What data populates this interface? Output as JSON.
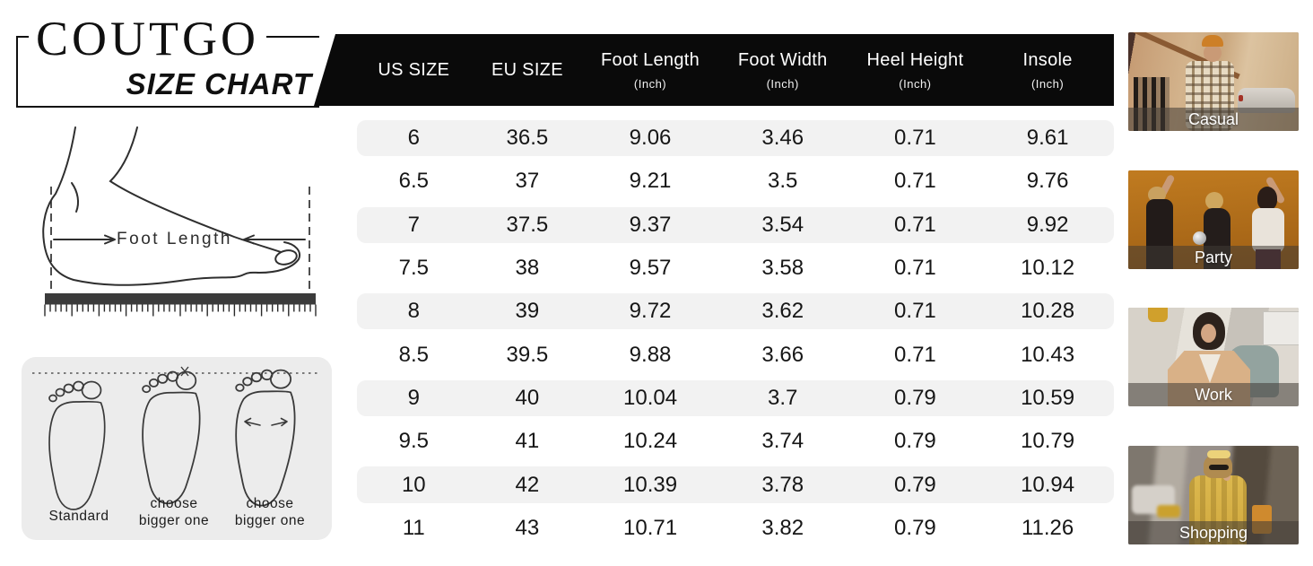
{
  "logo": {
    "brand": "COUTGO",
    "subtitle": "SIZE CHART"
  },
  "size_table": {
    "columns": [
      {
        "label": "US SIZE",
        "unit": ""
      },
      {
        "label": "EU SIZE",
        "unit": ""
      },
      {
        "label": "Foot Length",
        "unit": "(Inch)"
      },
      {
        "label": "Foot Width",
        "unit": "(Inch)"
      },
      {
        "label": "Heel Height",
        "unit": "(Inch)"
      },
      {
        "label": "Insole",
        "unit": "(Inch)"
      }
    ],
    "rows": [
      [
        "6",
        "36.5",
        "9.06",
        "3.46",
        "0.71",
        "9.61"
      ],
      [
        "6.5",
        "37",
        "9.21",
        "3.5",
        "0.71",
        "9.76"
      ],
      [
        "7",
        "37.5",
        "9.37",
        "3.54",
        "0.71",
        "9.92"
      ],
      [
        "7.5",
        "38",
        "9.57",
        "3.58",
        "0.71",
        "10.12"
      ],
      [
        "8",
        "39",
        "9.72",
        "3.62",
        "0.71",
        "10.28"
      ],
      [
        "8.5",
        "39.5",
        "9.88",
        "3.66",
        "0.71",
        "10.43"
      ],
      [
        "9",
        "40",
        "10.04",
        "3.7",
        "0.79",
        "10.59"
      ],
      [
        "9.5",
        "41",
        "10.24",
        "3.74",
        "0.79",
        "10.79"
      ],
      [
        "10",
        "42",
        "10.39",
        "3.78",
        "0.79",
        "10.94"
      ],
      [
        "11",
        "43",
        "10.71",
        "3.82",
        "0.79",
        "11.26"
      ]
    ]
  },
  "measure_diagram": {
    "label": "Foot Length"
  },
  "fit_guide": {
    "options": [
      "Standard",
      "choose bigger one",
      "choose bigger one"
    ]
  },
  "categories": [
    {
      "label": "Casual",
      "alt": "woman in plaid jacket and orange beanie on a city street"
    },
    {
      "label": "Party",
      "alt": "three women dancing with a disco ball on an orange background"
    },
    {
      "label": "Work",
      "alt": "woman in a beige blazer in an office"
    },
    {
      "label": "Shopping",
      "alt": "woman in a yellow jacket on the phone carrying shopping bags"
    }
  ],
  "colors": {
    "header_bg": "#0a0a0a",
    "header_text": "#ffffff",
    "row_stripe": "#f2f2f2",
    "body_text": "#161616",
    "panel_bg": "#ececec",
    "photo_label_band": "rgba(64,58,52,0.55)"
  }
}
